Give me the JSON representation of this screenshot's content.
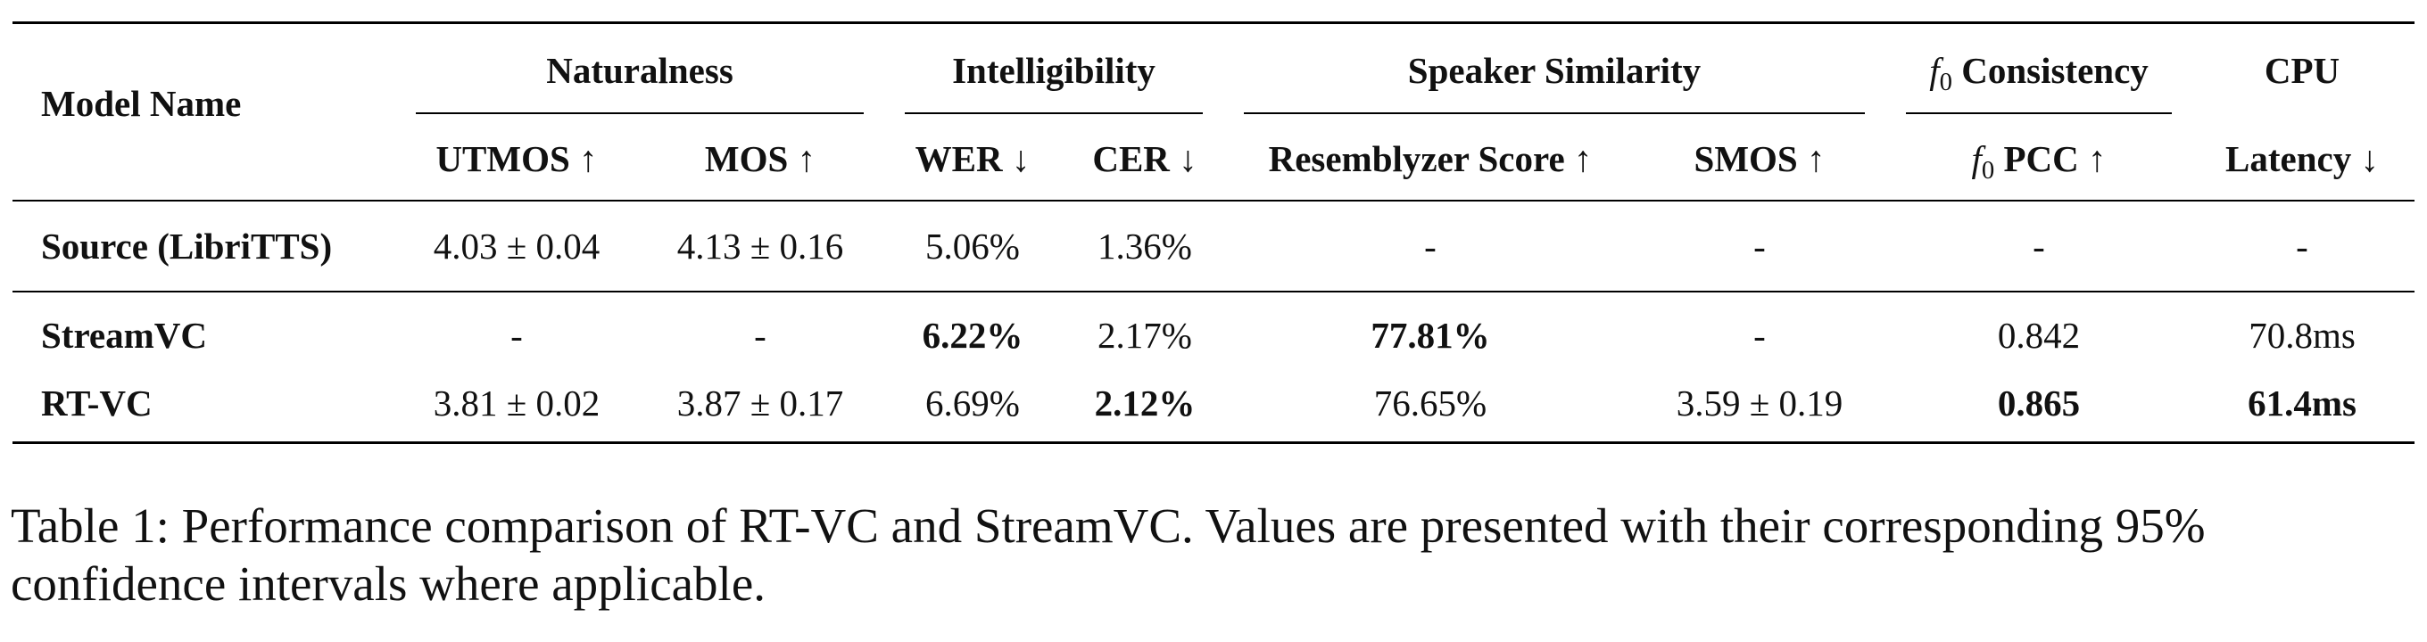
{
  "table": {
    "header": {
      "model_name": "Model Name",
      "groups": {
        "naturalness": "Naturalness",
        "intelligibility": "Intelligibility",
        "speaker_similarity": "Speaker Similarity",
        "f0_consistency_sym": "f",
        "f0_consistency_sub": "0",
        "f0_consistency_rest": " Consistency",
        "cpu": "CPU"
      },
      "columns": {
        "utmos": "UTMOS ↑",
        "mos": "MOS ↑",
        "wer": "WER ↓",
        "cer": "CER ↓",
        "resemblyzer": "Resemblyzer Score ↑",
        "smos": "SMOS ↑",
        "f0pcc_sym": "f",
        "f0pcc_sub": "0",
        "f0pcc_rest": " PCC ↑",
        "latency": "Latency ↓"
      }
    },
    "rows": {
      "source": {
        "name": "Source (LibriTTS)",
        "utmos": "4.03 ± 0.04",
        "mos": "4.13 ± 0.16",
        "wer": "5.06%",
        "cer": "1.36%",
        "resemblyzer": "-",
        "smos": "-",
        "f0pcc": "-",
        "latency": "-"
      },
      "streamvc": {
        "name": "StreamVC",
        "utmos": "-",
        "mos": "-",
        "wer": "6.22%",
        "cer": "2.17%",
        "resemblyzer": "77.81%",
        "smos": "-",
        "f0pcc": "0.842",
        "latency": "70.8ms"
      },
      "rtvc": {
        "name": "RT-VC",
        "utmos": "3.81 ± 0.02",
        "mos": "3.87 ± 0.17",
        "wer": "6.69%",
        "cer": "2.12%",
        "resemblyzer": "76.65%",
        "smos": "3.59 ± 0.19",
        "f0pcc": "0.865",
        "latency": "61.4ms"
      }
    }
  },
  "caption": "Table 1: Performance comparison of RT-VC and StreamVC. Values are presented with their corresponding 95% confidence intervals where applicable."
}
